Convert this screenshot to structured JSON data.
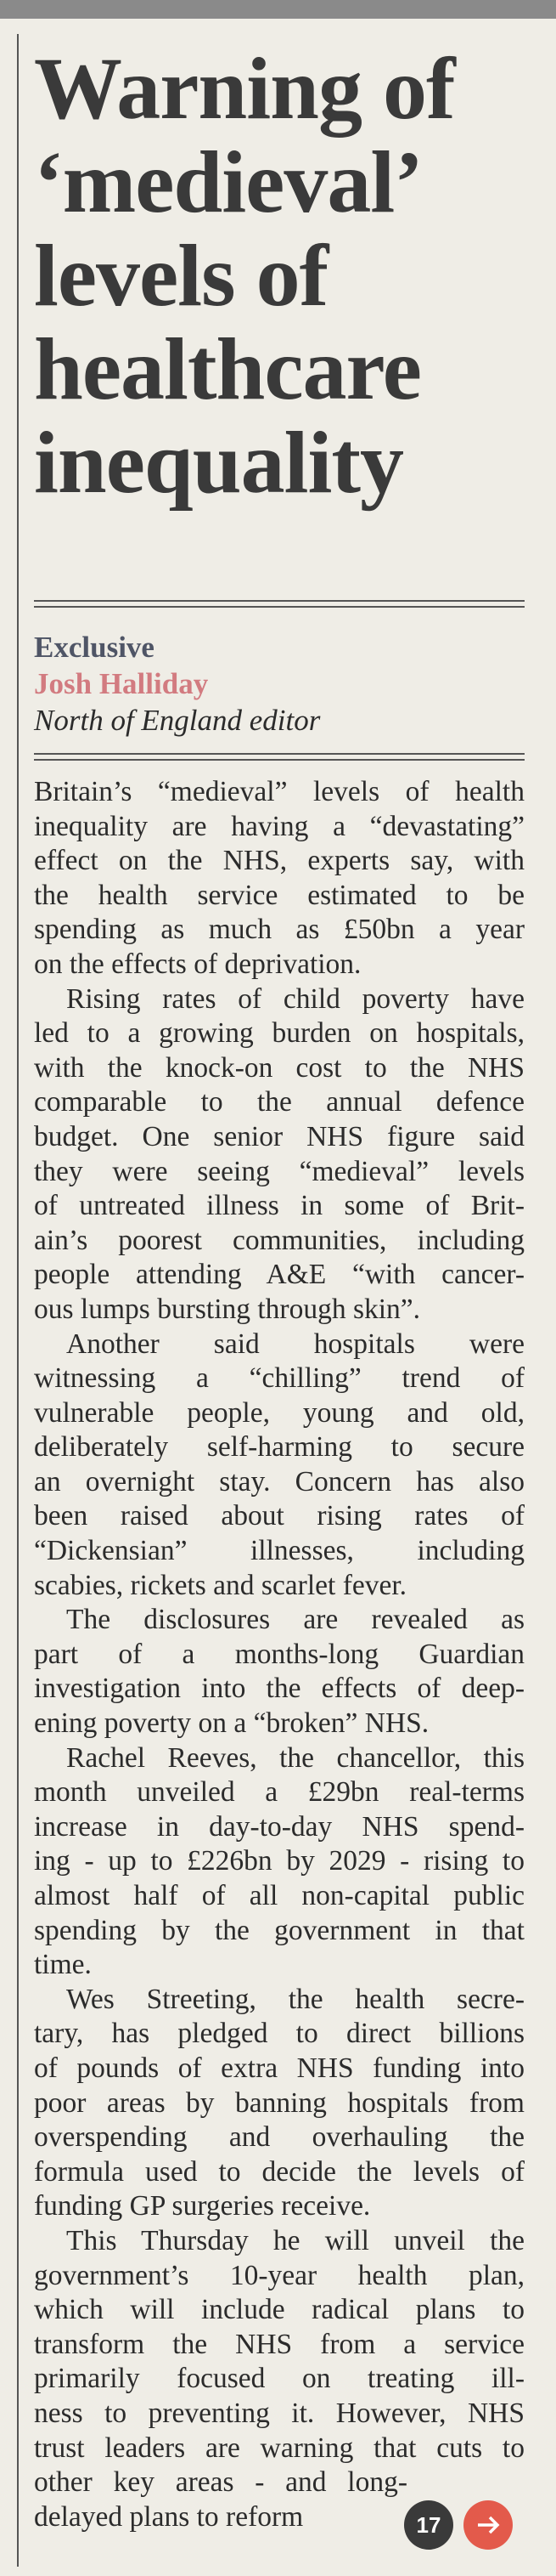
{
  "headline": [
    "Warning of",
    "‘medieval’",
    "levels of",
    "healthcare",
    "inequality"
  ],
  "byline": {
    "label": "Exclusive",
    "author": "Josh Halliday",
    "role": "North of England editor"
  },
  "paragraphs": [
    [
      "Britain’s “medieval” levels of health",
      "inequality are having a “devastating”",
      "effect on the NHS, experts say, with",
      "the health service estimated to be",
      "spending as much as £50bn a year",
      "on the effects of deprivation."
    ],
    [
      "Rising rates of child poverty have",
      "led to a growing burden on hospitals,",
      "with the knock-on cost to the NHS",
      "comparable to the annual defence",
      "budget. One senior NHS figure said",
      "they were seeing “medieval” levels",
      "of untreated illness in some of Brit-",
      "ain’s poorest communities, including",
      "people attending A&E “with cancer-",
      "ous lumps bursting through skin”."
    ],
    [
      "Another said hospitals were",
      "witnessing a “chilling” trend of",
      "vulnerable people, young and old,",
      "deliberately self-harming to secure",
      "an overnight stay. Concern has also",
      "been raised about rising rates of",
      "“Dickensian” illnesses, including",
      "scabies, rickets and scarlet fever."
    ],
    [
      "The disclosures are revealed as",
      "part of a months-long Guardian",
      "investigation into the effects of deep-",
      "ening poverty on a “broken” NHS."
    ],
    [
      "Rachel Reeves, the chancellor, this",
      "month unveiled a £29bn real-terms",
      "increase in day-to-day NHS spend-",
      "ing - up to £226bn by 2029 - rising to",
      "almost half of all non-capital public",
      "spending by the government in that",
      "time."
    ],
    [
      "Wes Streeting, the health secre-",
      "tary, has pledged to direct billions",
      "of pounds of extra NHS funding into",
      "poor areas by banning hospitals from",
      "overspending and overhauling the",
      "formula used to decide the levels of",
      "funding GP surgeries receive."
    ],
    [
      "This Thursday he will unveil the",
      "government’s 10-year health plan,",
      "which will include radical plans to",
      "transform the NHS from a service",
      "primarily focused on treating ill-",
      "ness to preventing it. However, NHS",
      "trust leaders are warning that cuts to",
      "other key areas - and long-",
      "delayed plans to reform"
    ]
  ],
  "page_number": "17"
}
